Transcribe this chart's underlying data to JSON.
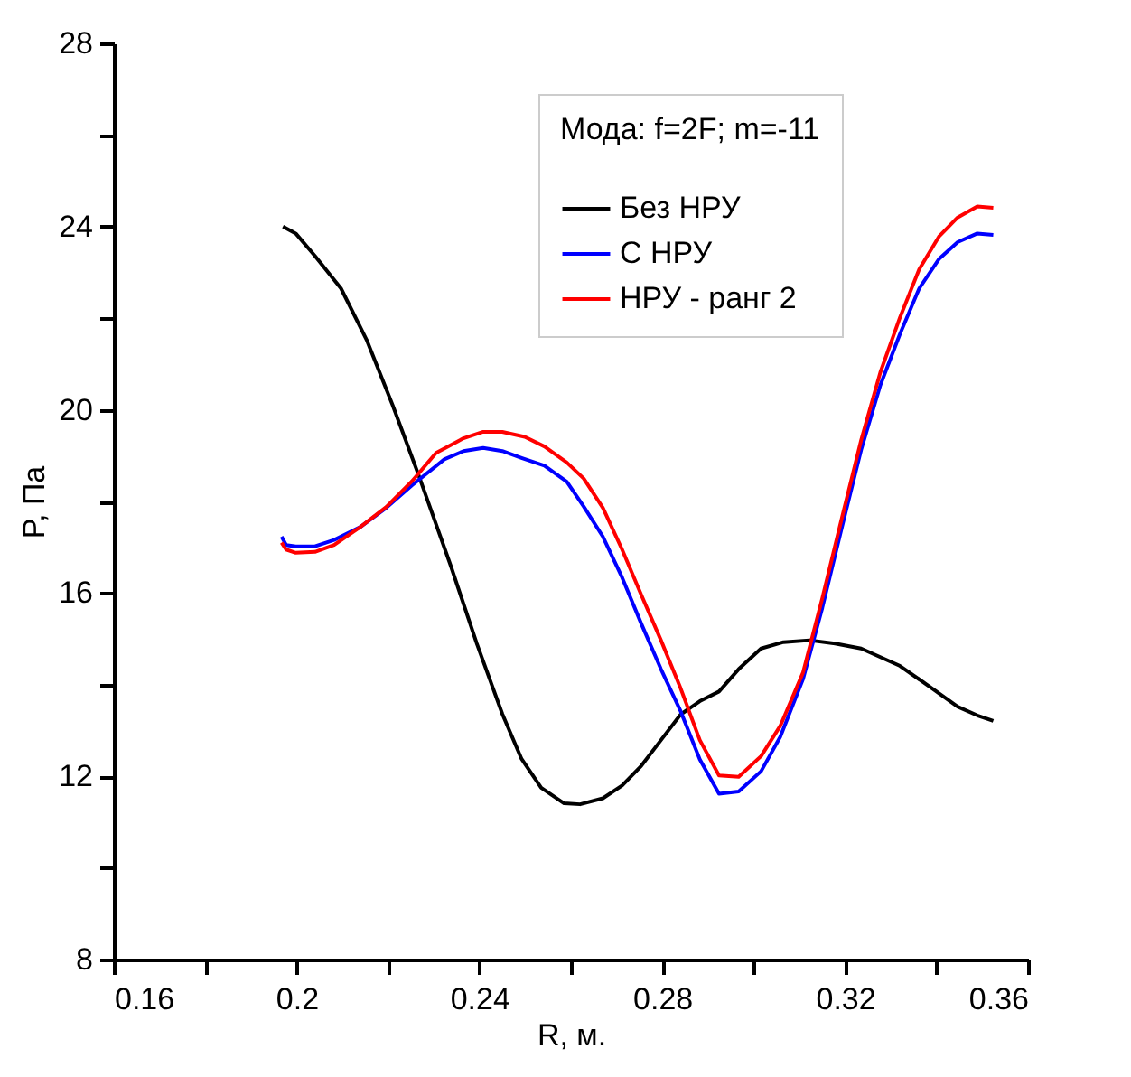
{
  "chart_data": {
    "type": "line",
    "xlabel": "R, м.",
    "ylabel": "P, Па",
    "legend_title": "Мода: f=2F; m=-11",
    "legend": "top right",
    "grid": false,
    "marker": "none",
    "line_style": "solid",
    "xlim": [
      0.16,
      0.36
    ],
    "xticks": [
      0.16,
      {
        "value": 0.18,
        "label": null
      },
      0.2,
      {
        "value": 0.22,
        "label": null
      },
      0.24,
      {
        "value": 0.26,
        "label": null
      },
      0.28,
      {
        "value": 0.3,
        "label": null
      },
      0.32,
      {
        "value": 0.34,
        "label": null
      },
      0.36
    ],
    "ylim": [
      8,
      28
    ],
    "yticks": [
      8,
      {
        "value": 10,
        "label": null
      },
      12,
      {
        "value": 14,
        "label": null
      },
      16,
      {
        "value": 18,
        "label": null
      },
      20,
      {
        "value": 22,
        "label": null
      },
      24,
      {
        "value": 26,
        "label": null
      },
      28
    ],
    "series": [
      {
        "name": "Без НРУ",
        "color": "#000000",
        "x": [
          0.197,
          0.1998,
          0.204,
          0.2097,
          0.2153,
          0.221,
          0.2267,
          0.2337,
          0.2394,
          0.245,
          0.2492,
          0.2535,
          0.2585,
          0.262,
          0.267,
          0.2712,
          0.2754,
          0.2797,
          0.284,
          0.2882,
          0.2924,
          0.2967,
          0.3016,
          0.3065,
          0.3122,
          0.3178,
          0.3235,
          0.332,
          0.339,
          0.3446,
          0.3489,
          0.3524
        ],
        "values": [
          24.0,
          23.85,
          23.36,
          22.65,
          21.53,
          20.1,
          18.57,
          16.6,
          14.9,
          13.36,
          12.38,
          11.75,
          11.41,
          11.39,
          11.52,
          11.8,
          12.23,
          12.79,
          13.35,
          13.64,
          13.85,
          14.34,
          14.79,
          14.93,
          14.97,
          14.9,
          14.79,
          14.41,
          13.92,
          13.52,
          13.33,
          13.21
        ]
      },
      {
        "name": "С НРУ",
        "color": "#0000ff",
        "x": [
          0.1967,
          0.1977,
          0.1998,
          0.204,
          0.2082,
          0.2139,
          0.2196,
          0.2252,
          0.2323,
          0.2365,
          0.2408,
          0.245,
          0.2492,
          0.2542,
          0.2591,
          0.2628,
          0.267,
          0.2712,
          0.2754,
          0.2797,
          0.284,
          0.2882,
          0.2924,
          0.2967,
          0.3016,
          0.3058,
          0.3108,
          0.315,
          0.3193,
          0.3235,
          0.3277,
          0.332,
          0.3362,
          0.3405,
          0.3446,
          0.3489,
          0.3524
        ],
        "values": [
          17.23,
          17.05,
          17.02,
          17.02,
          17.16,
          17.44,
          17.86,
          18.35,
          18.92,
          19.1,
          19.17,
          19.1,
          18.95,
          18.78,
          18.43,
          17.89,
          17.23,
          16.34,
          15.33,
          14.34,
          13.42,
          12.37,
          11.62,
          11.67,
          12.11,
          12.86,
          14.13,
          15.68,
          17.44,
          19.13,
          20.54,
          21.66,
          22.65,
          23.29,
          23.66,
          23.85,
          23.82
        ]
      },
      {
        "name": "НРУ - ранг 2",
        "color": "#ff0000",
        "x": [
          0.1967,
          0.1977,
          0.1998,
          0.204,
          0.2082,
          0.2139,
          0.2196,
          0.2252,
          0.2305,
          0.2365,
          0.2408,
          0.245,
          0.2499,
          0.2542,
          0.2591,
          0.2628,
          0.267,
          0.2712,
          0.2754,
          0.2797,
          0.284,
          0.2882,
          0.2924,
          0.2967,
          0.3016,
          0.3058,
          0.3108,
          0.315,
          0.3193,
          0.3235,
          0.3277,
          0.332,
          0.3362,
          0.3405,
          0.3446,
          0.3489,
          0.3524
        ],
        "values": [
          17.1,
          16.95,
          16.88,
          16.9,
          17.05,
          17.44,
          17.88,
          18.44,
          19.06,
          19.38,
          19.52,
          19.52,
          19.41,
          19.2,
          18.85,
          18.5,
          17.86,
          16.95,
          15.96,
          14.97,
          13.92,
          12.79,
          12.02,
          11.99,
          12.44,
          13.1,
          14.27,
          15.89,
          17.65,
          19.34,
          20.82,
          22.02,
          23.07,
          23.78,
          24.2,
          24.44,
          24.41
        ]
      }
    ]
  }
}
